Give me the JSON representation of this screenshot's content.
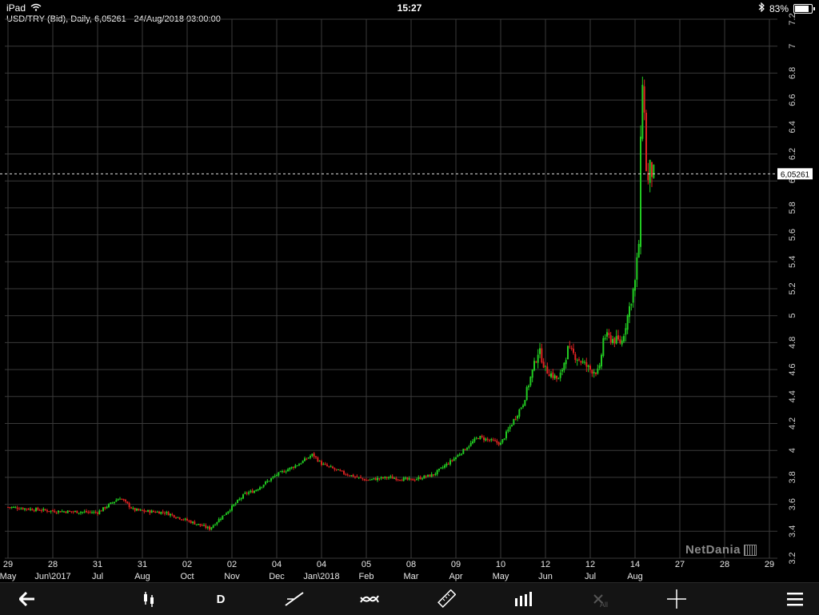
{
  "status_bar": {
    "device": "iPad",
    "time": "15:27",
    "battery": "83%",
    "battery_level": 0.83
  },
  "chart_title": "USD/TRY (Bid), Daily, 6,05261 - 24/Aug/2018 03:00:00",
  "watermark": "NetDania",
  "toolbar": {
    "period_label": "D",
    "delete_all_label": "All"
  },
  "icons": [
    "back-arrow-icon",
    "candlestick-icon",
    "trendline-icon",
    "indicator-icon",
    "ruler-icon",
    "volume-bars-icon",
    "delete-all-icon",
    "crosshair-icon",
    "menu-icon",
    "wifi-icon",
    "bluetooth-icon",
    "battery-icon"
  ],
  "colors": {
    "up": "#22cc22",
    "down": "#dd2222",
    "grid": "#3a3a3a",
    "background": "#000000"
  },
  "chart_data": {
    "type": "candlestick",
    "title": "USD/TRY (Bid), Daily, 6,05261 - 24/Aug/2018 03:00:00",
    "ylim": [
      3.2,
      7.2
    ],
    "y_ticks": [
      "3.2",
      "3.4",
      "3.6",
      "3.8",
      "4",
      "4.2",
      "4.4",
      "4.6",
      "4.8",
      "5",
      "5.2",
      "5.4",
      "5.6",
      "5.8",
      "6",
      "6.2",
      "6.4",
      "6.6",
      "6.8",
      "7",
      "7.2"
    ],
    "x_ticks": [
      {
        "day": "29",
        "month": "May"
      },
      {
        "day": "28",
        "month": "Jun\\2017"
      },
      {
        "day": "31",
        "month": "Jul"
      },
      {
        "day": "31",
        "month": "Aug"
      },
      {
        "day": "02",
        "month": "Oct"
      },
      {
        "day": "02",
        "month": "Nov"
      },
      {
        "day": "04",
        "month": "Dec"
      },
      {
        "day": "04",
        "month": "Jan\\2018"
      },
      {
        "day": "05",
        "month": "Feb"
      },
      {
        "day": "08",
        "month": "Mar"
      },
      {
        "day": "09",
        "month": "Apr"
      },
      {
        "day": "10",
        "month": "May"
      },
      {
        "day": "12",
        "month": "Jun"
      },
      {
        "day": "12",
        "month": "Jul"
      },
      {
        "day": "14",
        "month": "Aug"
      },
      {
        "day": "27",
        "month": ""
      },
      {
        "day": "28",
        "month": ""
      },
      {
        "day": "29",
        "month": ""
      }
    ],
    "last_price": 6.05261,
    "last_price_label": "6,05261",
    "close_path": [
      [
        0,
        3.58
      ],
      [
        1,
        3.55
      ],
      [
        2,
        3.54
      ],
      [
        2.5,
        3.65
      ],
      [
        2.8,
        3.56
      ],
      [
        3,
        3.55
      ],
      [
        3.5,
        3.54
      ],
      [
        4,
        3.48
      ],
      [
        4.25,
        3.45
      ],
      [
        4.5,
        3.42
      ],
      [
        5,
        3.58
      ],
      [
        5.3,
        3.68
      ],
      [
        5.5,
        3.7
      ],
      [
        6,
        3.82
      ],
      [
        6.5,
        3.9
      ],
      [
        6.8,
        3.97
      ],
      [
        7,
        3.9
      ],
      [
        7.5,
        3.83
      ],
      [
        8,
        3.78
      ],
      [
        8.5,
        3.8
      ],
      [
        9,
        3.78
      ],
      [
        9.5,
        3.82
      ],
      [
        10,
        3.95
      ],
      [
        10.5,
        4.1
      ],
      [
        11,
        4.05
      ],
      [
        11.5,
        4.35
      ],
      [
        11.85,
        4.75
      ],
      [
        12,
        4.6
      ],
      [
        12.3,
        4.52
      ],
      [
        12.5,
        4.75
      ],
      [
        13,
        4.6
      ],
      [
        13.2,
        4.58
      ],
      [
        13.3,
        4.85
      ],
      [
        13.7,
        4.8
      ],
      [
        14,
        5.25
      ],
      [
        14.1,
        5.6
      ],
      [
        14.15,
        6.9
      ],
      [
        14.22,
        6.4
      ],
      [
        14.27,
        5.9
      ],
      [
        14.32,
        6.1
      ],
      [
        14.4,
        6.05
      ]
    ]
  }
}
